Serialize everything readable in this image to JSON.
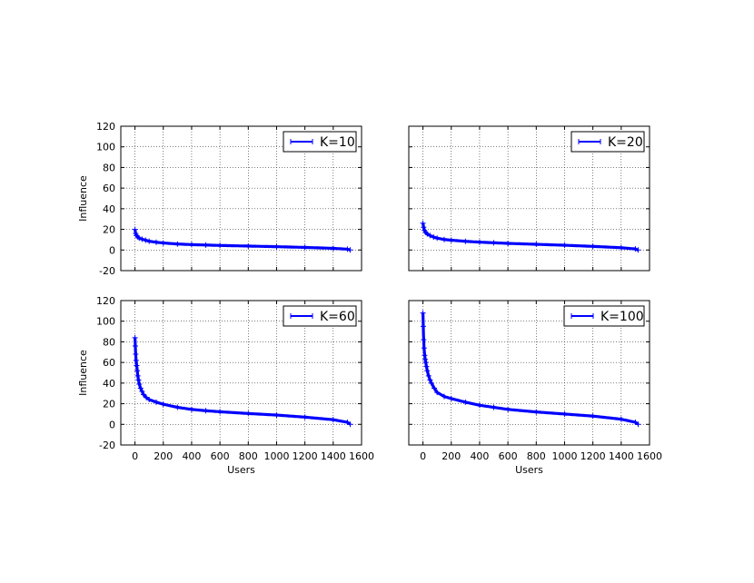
{
  "chart_data": [
    {
      "type": "line",
      "panel": "top-left",
      "series": [
        {
          "name": "K=10",
          "color": "#0000ff",
          "marker": "+",
          "x": [
            0,
            5,
            10,
            20,
            30,
            50,
            75,
            100,
            150,
            200,
            300,
            400,
            500,
            600,
            800,
            1000,
            1200,
            1400,
            1500,
            1520
          ],
          "y": [
            20,
            16,
            14,
            12.5,
            11.5,
            10.5,
            9.5,
            8.5,
            7.5,
            6.8,
            5.8,
            5.2,
            4.8,
            4.4,
            3.8,
            3.2,
            2.5,
            1.6,
            0.8,
            0
          ]
        }
      ],
      "ylabel": "Influence",
      "xlabel": "",
      "xlim": [
        -100,
        1600
      ],
      "ylim": [
        -20,
        120
      ],
      "xticks": [
        "0",
        "200",
        "400",
        "600",
        "800",
        "1000",
        "1200",
        "1400",
        "1600"
      ],
      "yticks": [
        "-20",
        "0",
        "20",
        "40",
        "60",
        "80",
        "100",
        "120"
      ],
      "grid": true,
      "legend": "top-right"
    },
    {
      "type": "line",
      "panel": "top-right",
      "series": [
        {
          "name": "K=20",
          "color": "#0000ff",
          "marker": "+",
          "x": [
            0,
            5,
            10,
            20,
            30,
            50,
            75,
            100,
            150,
            200,
            300,
            400,
            500,
            600,
            800,
            1000,
            1200,
            1400,
            1500,
            1520
          ],
          "y": [
            26,
            22,
            19,
            17,
            15.5,
            14,
            12.5,
            11.5,
            10.2,
            9.5,
            8.4,
            7.6,
            7,
            6.4,
            5.5,
            4.6,
            3.5,
            2.2,
            1,
            0
          ]
        }
      ],
      "ylabel": "",
      "xlabel": "",
      "xlim": [
        -100,
        1600
      ],
      "ylim": [
        -20,
        120
      ],
      "xticks": [
        "0",
        "200",
        "400",
        "600",
        "800",
        "1000",
        "1200",
        "1400",
        "1600"
      ],
      "yticks": [],
      "grid": true,
      "legend": "top-right"
    },
    {
      "type": "line",
      "panel": "bottom-left",
      "series": [
        {
          "name": "K=60",
          "color": "#0000ff",
          "marker": "+",
          "x": [
            0,
            2,
            5,
            8,
            12,
            16,
            20,
            25,
            30,
            40,
            50,
            60,
            80,
            100,
            150,
            200,
            300,
            400,
            500,
            600,
            800,
            1000,
            1200,
            1400,
            1500,
            1520
          ],
          "y": [
            84,
            76,
            68,
            62,
            57,
            52,
            47,
            43,
            39,
            35,
            32,
            29,
            26,
            24,
            21.5,
            19.5,
            16.5,
            14.5,
            13.2,
            12.2,
            10.5,
            9,
            7,
            4.5,
            2,
            0
          ]
        }
      ],
      "ylabel": "Influence",
      "xlabel": "Users",
      "xlim": [
        -100,
        1600
      ],
      "ylim": [
        -20,
        120
      ],
      "xticks": [
        "0",
        "200",
        "400",
        "600",
        "800",
        "1000",
        "1200",
        "1400",
        "1600"
      ],
      "yticks": [
        "-20",
        "0",
        "20",
        "40",
        "60",
        "80",
        "100",
        "120"
      ],
      "grid": true,
      "legend": "top-right"
    },
    {
      "type": "line",
      "panel": "bottom-right",
      "series": [
        {
          "name": "K=100",
          "color": "#0000ff",
          "marker": "+",
          "x": [
            0,
            2,
            5,
            8,
            12,
            16,
            20,
            25,
            30,
            40,
            50,
            60,
            80,
            100,
            150,
            200,
            300,
            400,
            500,
            600,
            800,
            1000,
            1200,
            1400,
            1500,
            1520
          ],
          "y": [
            108,
            95,
            82,
            74,
            67,
            63,
            60,
            56,
            52,
            47,
            43,
            40,
            35,
            31,
            27,
            25,
            21.5,
            18.5,
            16.5,
            14.5,
            12,
            10,
            8,
            5,
            2,
            0
          ]
        }
      ],
      "ylabel": "",
      "xlabel": "Users",
      "xlim": [
        -100,
        1600
      ],
      "ylim": [
        -20,
        120
      ],
      "xticks": [
        "0",
        "200",
        "400",
        "600",
        "800",
        "1000",
        "1200",
        "1400",
        "1600"
      ],
      "yticks": [],
      "grid": true,
      "legend": "top-right"
    }
  ]
}
